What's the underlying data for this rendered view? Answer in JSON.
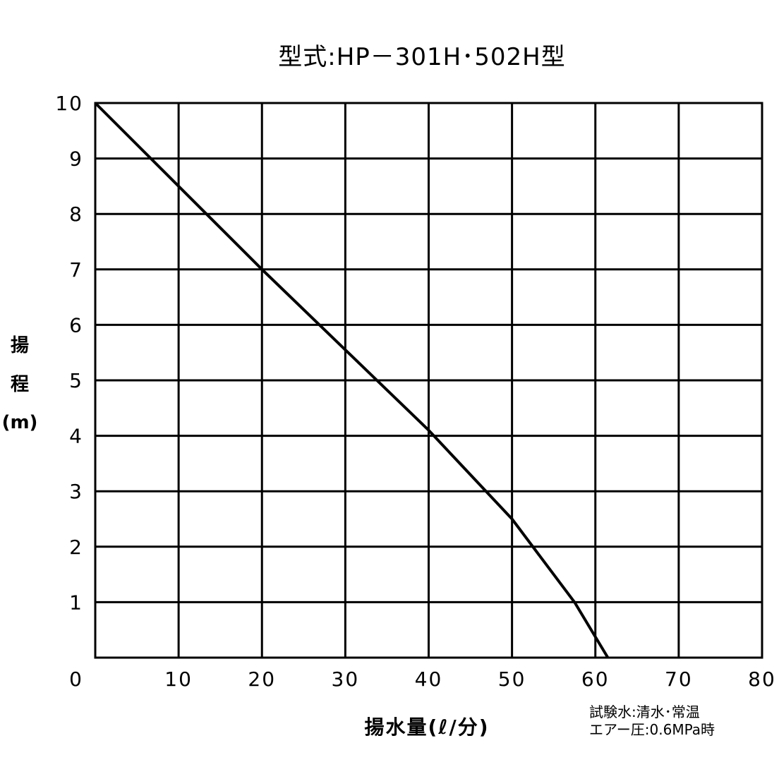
{
  "chart_data": {
    "type": "line",
    "title": "型式:HP－301H･502H型",
    "xlabel": "揚水量(ℓ/分)",
    "ylabel_lines": [
      "揚",
      "程",
      "(m)"
    ],
    "xlim": [
      0,
      80
    ],
    "ylim": [
      0,
      10
    ],
    "x_ticks": [
      10,
      20,
      30,
      40,
      50,
      60,
      70,
      80
    ],
    "y_ticks": [
      1,
      2,
      3,
      4,
      5,
      6,
      7,
      8,
      9,
      10
    ],
    "origin_label": "0",
    "grid": true,
    "series": [
      {
        "color": "#000000",
        "x": [
          0,
          10,
          20,
          30,
          40,
          50,
          57.5,
          61.5
        ],
        "y": [
          10,
          8.5,
          7.0,
          5.55,
          4.1,
          2.5,
          1.0,
          0
        ]
      }
    ],
    "notes": [
      "試験水:清水･常温",
      "エアー圧:0.6MPa時"
    ]
  }
}
